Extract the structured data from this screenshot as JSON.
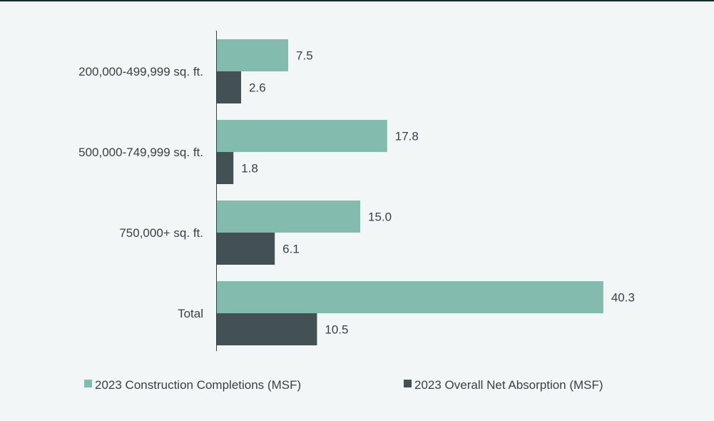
{
  "chart_data": {
    "type": "bar",
    "orientation": "horizontal",
    "title": "",
    "xlabel": "",
    "ylabel": "",
    "categories": [
      "200,000-499,999 sq. ft.",
      "500,000-749,999 sq. ft.",
      "750,000+ sq. ft.",
      "Total"
    ],
    "series": [
      {
        "name": "2023 Construction Completions (MSF)",
        "color": "#83bcae",
        "values": [
          7.5,
          17.8,
          15.0,
          40.3
        ],
        "labels": [
          "7.5",
          "17.8",
          "15.0",
          "40.3"
        ]
      },
      {
        "name": "2023 Overall Net Absorption (MSF)",
        "color": "#435054",
        "values": [
          2.6,
          1.8,
          6.1,
          10.5
        ],
        "labels": [
          "2.6",
          "1.8",
          "6.1",
          "10.5"
        ]
      }
    ],
    "xlim": [
      0,
      51
    ],
    "grid": false,
    "legend": "bottom"
  }
}
